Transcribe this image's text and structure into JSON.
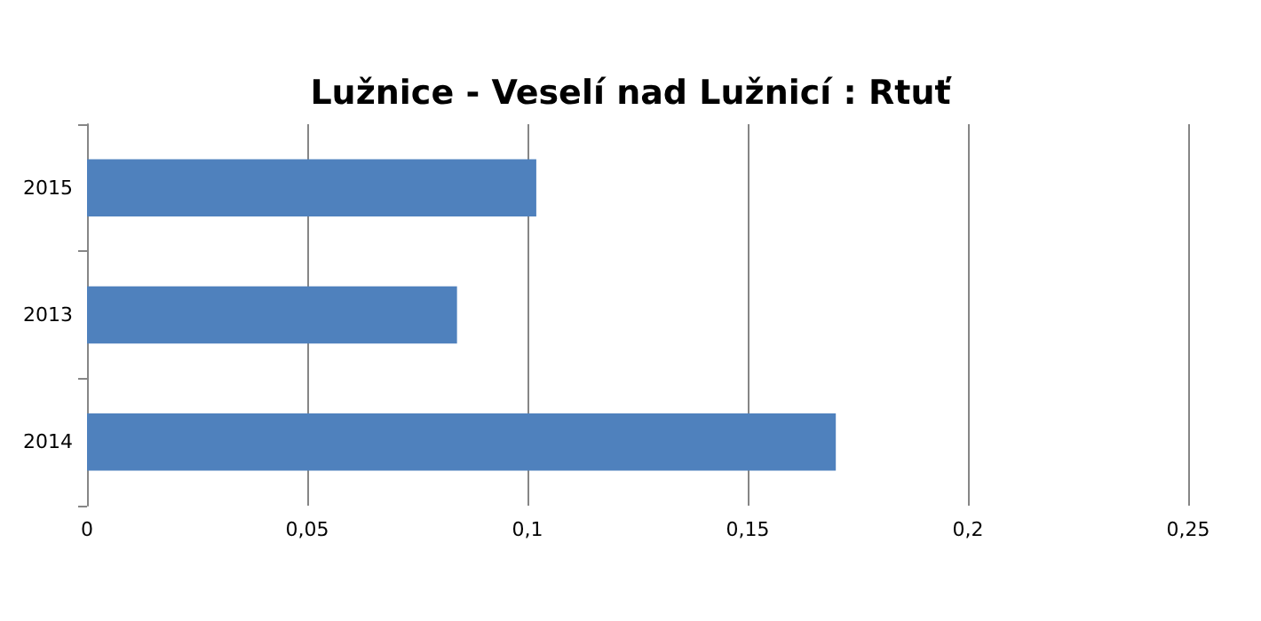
{
  "chart_data": {
    "type": "bar",
    "orientation": "horizontal",
    "title": "Lužnice - Veselí nad Lužnicí : Rtuť",
    "categories": [
      "2015",
      "2013",
      "2014"
    ],
    "values": [
      0.102,
      0.084,
      0.17
    ],
    "color": "#4f81bd",
    "xlim": [
      0,
      0.25
    ],
    "xticks": [
      0,
      {
        "value": 0.05,
        "label": "0,05"
      },
      {
        "value": 0.1,
        "label": "0,1"
      },
      {
        "value": 0.15,
        "label": "0,15"
      },
      {
        "value": 0.2,
        "label": "0,2"
      },
      {
        "value": 0.25,
        "label": "0,25"
      }
    ],
    "grid": "x"
  }
}
